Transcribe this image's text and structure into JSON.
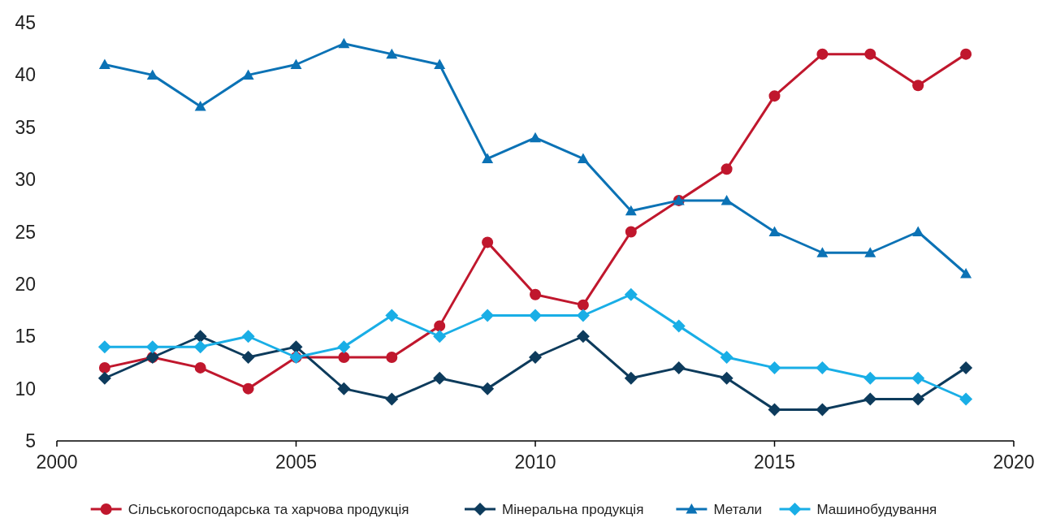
{
  "chart_data": {
    "type": "line",
    "x": [
      2001,
      2002,
      2003,
      2004,
      2005,
      2006,
      2007,
      2008,
      2009,
      2010,
      2011,
      2012,
      2013,
      2014,
      2015,
      2016,
      2017,
      2018,
      2019
    ],
    "xlim": [
      2000,
      2020
    ],
    "xticks": [
      2000,
      2005,
      2010,
      2015,
      2020
    ],
    "ylim": [
      5,
      45
    ],
    "yticks": [
      5,
      10,
      15,
      20,
      25,
      30,
      35,
      40,
      45
    ],
    "grid": false,
    "legend": "bottom",
    "line_style": "solid",
    "series": [
      {
        "name": "Сільськогосподарська та харчова продукція",
        "color": "#c0172d",
        "marker": "circle",
        "values": [
          12,
          13,
          12,
          10,
          13,
          13,
          13,
          16,
          24,
          19,
          18,
          25,
          28,
          31,
          38,
          42,
          42,
          39,
          42
        ]
      },
      {
        "name": "Мінеральна продукція",
        "color": "#0d3b5c",
        "marker": "diamond",
        "values": [
          11,
          13,
          15,
          13,
          14,
          10,
          9,
          11,
          10,
          13,
          15,
          11,
          12,
          11,
          8,
          8,
          9,
          9,
          12
        ]
      },
      {
        "name": "Метали",
        "color": "#0b72b5",
        "marker": "triangle",
        "values": [
          41,
          40,
          37,
          40,
          41,
          43,
          42,
          41,
          32,
          34,
          32,
          27,
          28,
          28,
          25,
          23,
          23,
          25,
          21
        ]
      },
      {
        "name": "Машинобудування",
        "color": "#19aee6",
        "marker": "diamond",
        "values": [
          14,
          14,
          14,
          15,
          13,
          14,
          17,
          15,
          17,
          17,
          17,
          19,
          16,
          13,
          12,
          12,
          11,
          11,
          9
        ]
      }
    ]
  }
}
